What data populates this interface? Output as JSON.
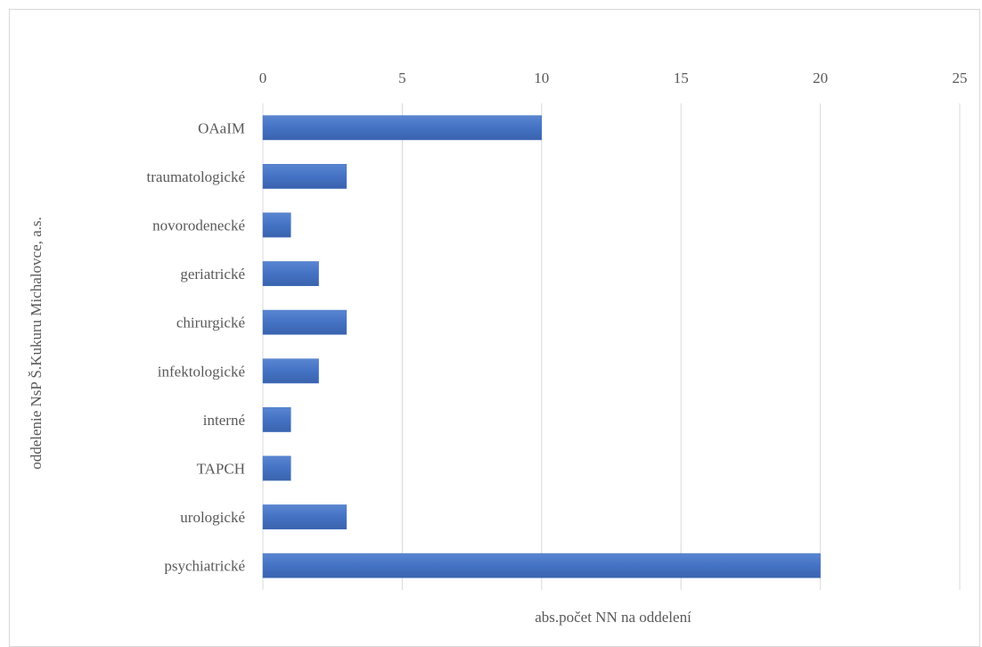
{
  "chart_data": {
    "type": "bar",
    "orientation": "horizontal",
    "xlabel": "abs.počet NN na oddelení",
    "ylabel": "oddelenie NsP Š.Kukuru Michalovce, a.s.",
    "xlim": [
      0,
      25
    ],
    "x_ticks": [
      0,
      5,
      10,
      15,
      20,
      25
    ],
    "x_axis_position": "top",
    "grid": "vertical",
    "legend": "none",
    "bar_color": "#4472c4",
    "categories": [
      "OAaIM",
      "traumatologické",
      "novorodenecké",
      "geriatrické",
      "chirurgické",
      "infektologické",
      "interné",
      "TAPCH",
      "urologické",
      "psychiatrické"
    ],
    "values": [
      10,
      3,
      1,
      2,
      3,
      2,
      1,
      1,
      3,
      20
    ]
  }
}
